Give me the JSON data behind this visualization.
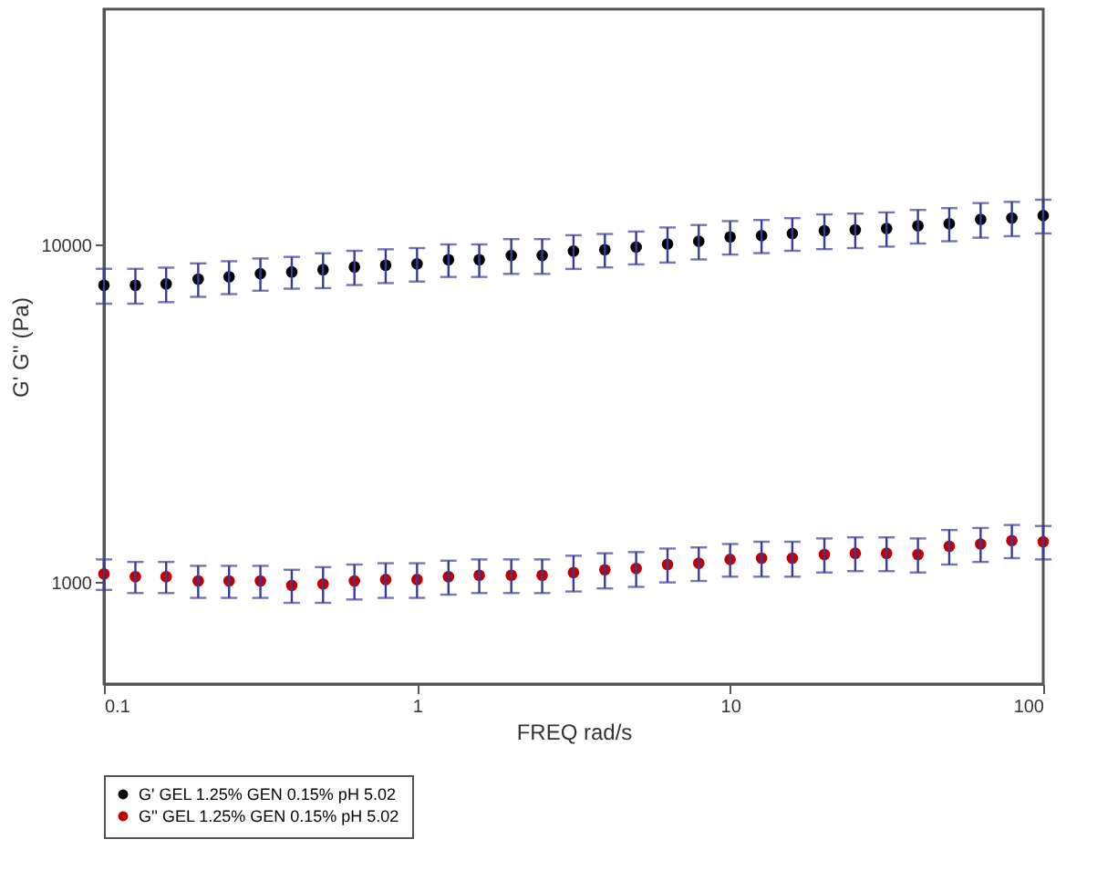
{
  "chart_data": {
    "type": "scatter",
    "xlabel": "FREQ rad/s",
    "ylabel": "G' G'' (Pa)",
    "x": [
      0.1,
      0.126,
      0.158,
      0.2,
      0.251,
      0.316,
      0.398,
      0.501,
      0.631,
      0.794,
      1,
      1.26,
      1.58,
      2,
      2.51,
      3.16,
      3.98,
      5.01,
      6.31,
      7.94,
      10,
      12.6,
      15.8,
      20,
      25.1,
      31.6,
      39.8,
      50.1,
      63.1,
      79.4,
      100
    ],
    "series": [
      {
        "name": "G' GEL 1.25% GEN 0.15% pH 5.02",
        "color": "#000000",
        "values": [
          7600,
          7600,
          7670,
          7920,
          8050,
          8220,
          8320,
          8450,
          8610,
          8710,
          8790,
          9040,
          9040,
          9310,
          9310,
          9590,
          9680,
          9860,
          10070,
          10260,
          10570,
          10660,
          10810,
          11020,
          11090,
          11190,
          11400,
          11560,
          11910,
          12020,
          12220
        ],
        "errors": [
          900,
          900,
          900,
          900,
          900,
          900,
          900,
          1000,
          1000,
          1000,
          1000,
          1000,
          1000,
          1100,
          1100,
          1100,
          1100,
          1100,
          1200,
          1200,
          1200,
          1200,
          1200,
          1300,
          1300,
          1300,
          1300,
          1300,
          1400,
          1400,
          1400
        ]
      },
      {
        "name": "G'' GEL 1.25% GEN 0.15% pH 5.02",
        "color": "#c00000",
        "values": [
          1060,
          1040,
          1040,
          1010,
          1010,
          1010,
          980,
          990,
          1010,
          1020,
          1020,
          1040,
          1050,
          1050,
          1050,
          1070,
          1090,
          1100,
          1130,
          1140,
          1170,
          1180,
          1180,
          1210,
          1220,
          1220,
          1210,
          1280,
          1300,
          1330,
          1320
        ],
        "errors": [
          110,
          110,
          110,
          110,
          110,
          110,
          110,
          120,
          120,
          120,
          120,
          120,
          120,
          120,
          120,
          130,
          130,
          130,
          130,
          130,
          130,
          140,
          140,
          140,
          140,
          140,
          140,
          150,
          150,
          150,
          150
        ]
      }
    ],
    "xlim": [
      0.1,
      100
    ],
    "xticks": [
      0.1,
      1,
      10,
      100
    ],
    "ylim": [
      500,
      50000
    ],
    "yticks": [
      1000,
      10000
    ],
    "log": "xy",
    "grid": false,
    "legend": "bottom left",
    "marker": "circle"
  }
}
